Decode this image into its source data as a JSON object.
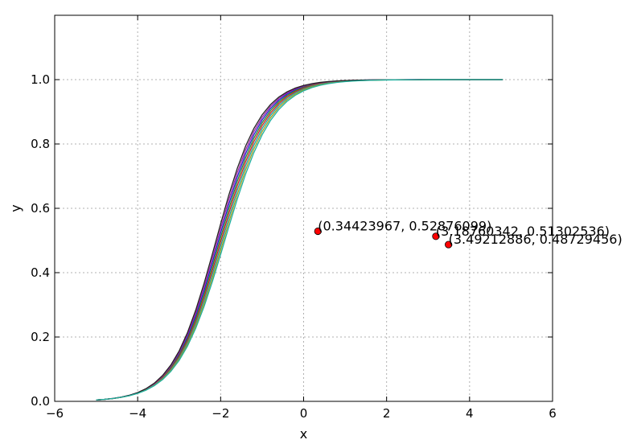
{
  "chart_data": {
    "type": "line",
    "title": "",
    "xlabel": "x",
    "ylabel": "y",
    "xlim": [
      -6,
      6
    ],
    "ylim": [
      0.0,
      1.2
    ],
    "grid": true,
    "legend": "none",
    "x_ticks": [
      -6,
      -4,
      -2,
      0,
      2,
      4,
      6
    ],
    "x_tick_labels": [
      "−6",
      "−4",
      "−2",
      "0",
      "2",
      "4",
      "6"
    ],
    "y_ticks": [
      0.0,
      0.2,
      0.4,
      0.6,
      0.8,
      1.0
    ],
    "y_tick_labels": [
      "0.0",
      "0.2",
      "0.4",
      "0.6",
      "0.8",
      "1.0"
    ],
    "series": [
      {
        "color": "#1f1fd0",
        "midpoint": -2.05,
        "steepness": 1.85
      },
      {
        "color": "#2a8a2a",
        "midpoint": -2.02,
        "steepness": 1.83
      },
      {
        "color": "#d02020",
        "midpoint": -1.99,
        "steepness": 1.81
      },
      {
        "color": "#20a0a0",
        "midpoint": -1.96,
        "steepness": 1.79
      },
      {
        "color": "#a020a0",
        "midpoint": -2.08,
        "steepness": 1.87
      },
      {
        "color": "#a0a020",
        "midpoint": -1.93,
        "steepness": 1.77
      },
      {
        "color": "#222222",
        "midpoint": -2.11,
        "steepness": 1.89
      },
      {
        "color": "#1fb0a0",
        "midpoint": -1.9,
        "steepness": 1.75
      }
    ],
    "curve_x_range": [
      -5,
      4.8
    ],
    "points": [
      {
        "x": 0.34423967,
        "y": 0.52876099,
        "label": "(0.34423967, 0.52876099)"
      },
      {
        "x": 3.18760342,
        "y": 0.51302536,
        "label": "(3.18760342, 0.51302536)"
      },
      {
        "x": 3.49212886,
        "y": 0.48729456,
        "label": "(3.49212886, 0.48729456)"
      }
    ],
    "point_color": "#ff0000"
  }
}
